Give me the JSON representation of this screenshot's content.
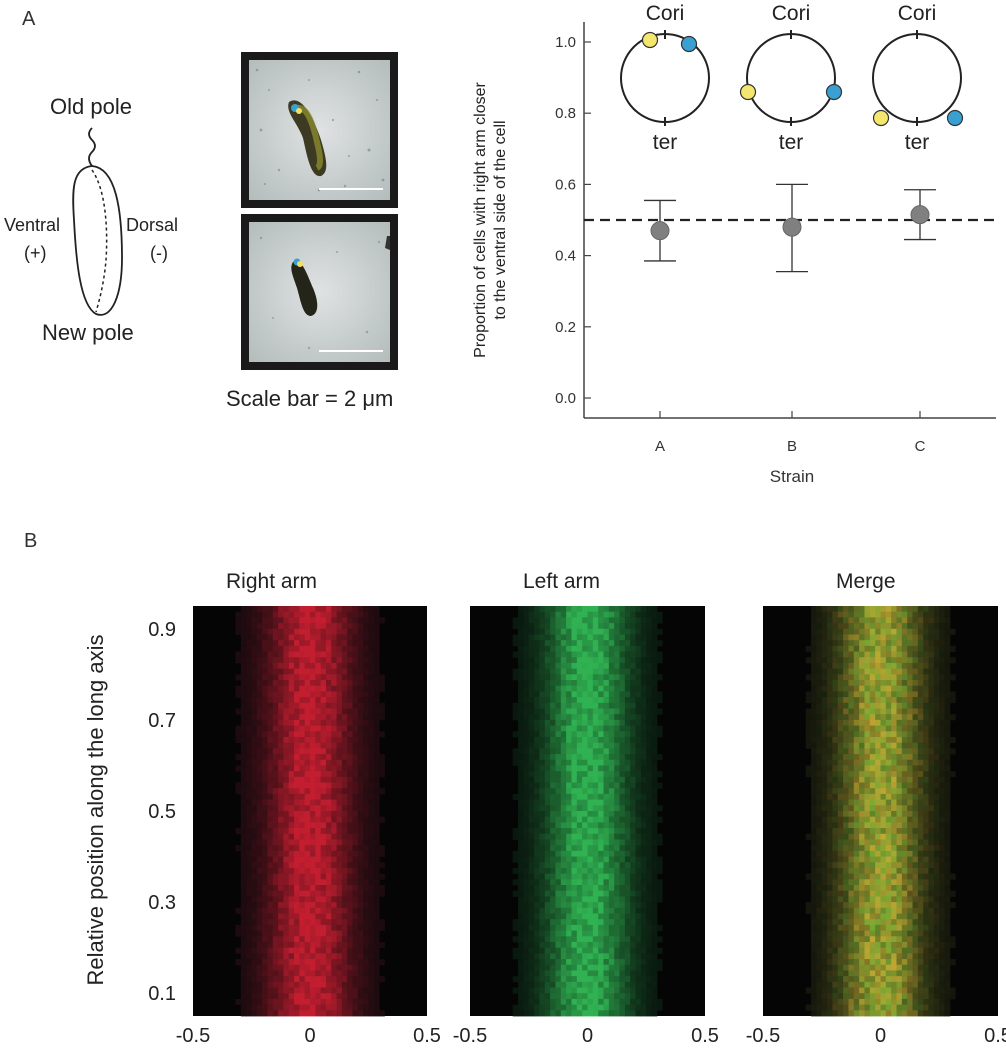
{
  "panel_a_label": "A",
  "panel_b_label": "B",
  "cell_diagram": {
    "old_pole": "Old pole",
    "new_pole": "New pole",
    "ventral": "Ventral",
    "ventral_sign": "(+)",
    "dorsal": "Dorsal",
    "dorsal_sign": "(-)"
  },
  "micrographs": {
    "scale_caption": "Scale bar = 2 μm"
  },
  "colors": {
    "right_arm": "#c8323c",
    "left_arm": "#3cb45a",
    "merge": "#a0a032",
    "marker": "#808080",
    "dot_yellow": "#f5e66e",
    "dot_blue": "#3aa0d2"
  },
  "chart_data": [
    {
      "type": "scatter",
      "title": "",
      "xlabel": "Strain",
      "ylabel_line1": "Proportion of cells with right arm closer",
      "ylabel_line2": "to the ventral side of the cell",
      "categories": [
        "A",
        "B",
        "C"
      ],
      "values": [
        0.47,
        0.48,
        0.515
      ],
      "error_low": [
        0.385,
        0.355,
        0.445
      ],
      "error_high": [
        0.555,
        0.6,
        0.585
      ],
      "reference_line": 0.5,
      "ylim": [
        0.0,
        1.0
      ],
      "yticks": [
        "0.0",
        "0.2",
        "0.4",
        "0.6",
        "0.8",
        "1.0"
      ],
      "chromosome_insets": [
        {
          "top_label": "Cori",
          "bottom_label": "ter"
        },
        {
          "top_label": "Cori",
          "bottom_label": "ter"
        },
        {
          "top_label": "Cori",
          "bottom_label": "ter"
        }
      ]
    },
    {
      "type": "heatmap",
      "panels": [
        "Right arm",
        "Left arm",
        "Merge"
      ],
      "ylabel": "Relative position along the long axis",
      "yticks": [
        "0.9",
        "0.7",
        "0.5",
        "0.3",
        "0.1"
      ],
      "xticks": [
        "-0.5",
        "0",
        "0.5"
      ],
      "x_range": [
        -0.5,
        0.5
      ],
      "y_range": [
        0.05,
        0.95
      ]
    }
  ]
}
